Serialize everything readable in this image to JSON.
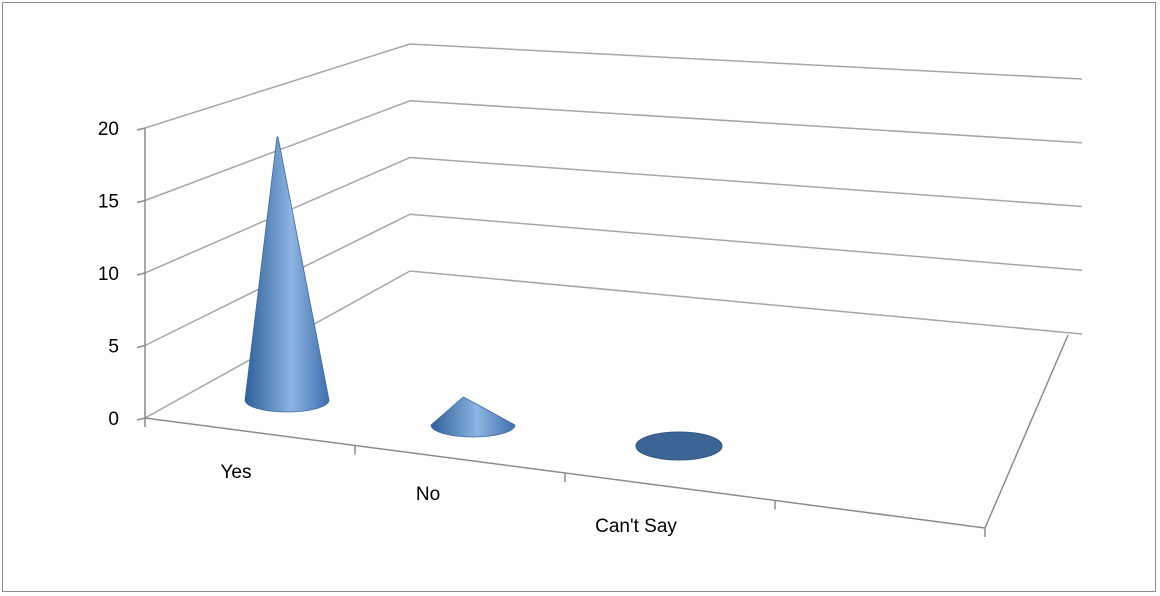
{
  "chart_data": {
    "type": "bar",
    "shape": "cone",
    "projection": "3d",
    "title": "",
    "xlabel": "",
    "ylabel": "",
    "categories": [
      "Yes",
      "No",
      "Can't Say"
    ],
    "values": [
      19,
      2,
      0
    ],
    "ylim": [
      0,
      20
    ],
    "yticks": [
      0,
      5,
      10,
      15,
      20
    ],
    "grid": true,
    "legend": "none",
    "colors": {
      "cone_light": "#8db4e2",
      "cone_mid": "#4f81bd",
      "cone_dark": "#2e5f99",
      "flat_base": "#3c6495",
      "grid": "#a6a6a6",
      "axis": "#8c8c8c"
    }
  }
}
